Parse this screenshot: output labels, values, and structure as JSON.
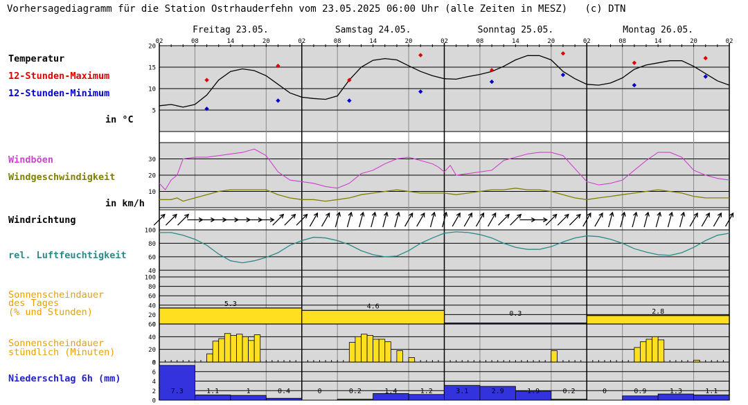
{
  "title": "Vorhersagediagramm für die Station Ostrhauderfehn vom 23.05.2025 06:00 Uhr (alle Zeiten in MESZ)   (c) DTN",
  "days": [
    "Freitag 23.05.",
    "Samstag 24.05.",
    "Sonntag 25.05.",
    "Montag 26.05."
  ],
  "hour_ticks": [
    "02",
    "08",
    "14",
    "20",
    "02",
    "08",
    "14",
    "20",
    "02",
    "08",
    "14",
    "20",
    "02",
    "08",
    "14",
    "20",
    "02"
  ],
  "labels": {
    "temperatur": "Temperatur",
    "tmax": "12-Stunden-Maximum",
    "tmin": "12-Stunden-Minimum",
    "tunit": "in °C",
    "gust": "Windböen",
    "wspeed": "Windgeschwindigkeit",
    "wunit": "in km/h",
    "wdir": "Windrichtung",
    "rh": "rel. Luftfeuchtigkeit",
    "sun_day_1": "Sonnenscheindauer",
    "sun_day_2": "des Tages",
    "sun_day_3": "(% und Stunden)",
    "sun_hour_1": "Sonnenscheindauer",
    "sun_hour_2": "stündlich (Minuten)",
    "precip": "Niederschlag 6h (mm)"
  },
  "colors": {
    "panel_bg": "#d8d8d8",
    "temp_line": "#000000",
    "tmax": "#e00000",
    "tmin": "#0000cc",
    "gust": "#cc44cc",
    "wspeed": "#808000",
    "rh": "#2a8a8a",
    "sun": "#ffe020",
    "precip": "#3333dd",
    "sun_label": "#e8a000",
    "precip_label": "#2222cc"
  },
  "chart_data": {
    "type": "meteogram",
    "x_hours_range": [
      0,
      96
    ],
    "temperature": {
      "ylim": [
        0,
        20
      ],
      "yticks": [
        "5",
        "10",
        "15",
        "20"
      ],
      "hourly_points": [
        [
          0,
          6
        ],
        [
          2,
          6.3
        ],
        [
          4,
          5.7
        ],
        [
          6,
          6.3
        ],
        [
          8,
          8.5
        ],
        [
          10,
          12
        ],
        [
          12,
          14
        ],
        [
          14,
          14.6
        ],
        [
          16,
          14.2
        ],
        [
          18,
          13
        ],
        [
          20,
          11
        ],
        [
          22,
          9
        ],
        [
          24,
          8
        ],
        [
          26,
          7.7
        ],
        [
          28,
          7.5
        ],
        [
          30,
          8.3
        ],
        [
          32,
          12
        ],
        [
          34,
          15
        ],
        [
          36,
          16.6
        ],
        [
          38,
          17
        ],
        [
          40,
          16.7
        ],
        [
          42,
          15.3
        ],
        [
          44,
          14
        ],
        [
          46,
          13
        ],
        [
          48,
          12.3
        ],
        [
          50,
          12.2
        ],
        [
          52,
          12.8
        ],
        [
          54,
          13.3
        ],
        [
          56,
          14
        ],
        [
          58,
          15.2
        ],
        [
          60,
          16.7
        ],
        [
          62,
          17.7
        ],
        [
          64,
          17.7
        ],
        [
          66,
          16.7
        ],
        [
          68,
          14
        ],
        [
          70,
          12.3
        ],
        [
          72,
          11
        ],
        [
          74,
          10.8
        ],
        [
          76,
          11.3
        ],
        [
          78,
          12.5
        ],
        [
          80,
          14.5
        ],
        [
          82,
          15.5
        ],
        [
          84,
          16
        ],
        [
          86,
          16.5
        ],
        [
          88,
          16.5
        ],
        [
          90,
          15.2
        ],
        [
          92,
          13.5
        ],
        [
          94,
          11.8
        ],
        [
          96,
          10.8
        ]
      ],
      "max_12h": [
        [
          8,
          12
        ],
        [
          20,
          15.3
        ],
        [
          32,
          12
        ],
        [
          44,
          17.8
        ],
        [
          56,
          14.3
        ],
        [
          68,
          18.2
        ],
        [
          80,
          16
        ],
        [
          92,
          17.1
        ]
      ],
      "min_12h": [
        [
          8,
          5.3
        ],
        [
          20,
          7.2
        ],
        [
          32,
          7.2
        ],
        [
          44,
          9.3
        ],
        [
          56,
          11.6
        ],
        [
          68,
          13.2
        ],
        [
          80,
          10.8
        ],
        [
          92,
          12.8
        ]
      ]
    },
    "wind": {
      "ylim": [
        0,
        40
      ],
      "yticks": [
        "10",
        "20",
        "30"
      ],
      "gust_points": [
        [
          0,
          15
        ],
        [
          1,
          11
        ],
        [
          2,
          17
        ],
        [
          3,
          20
        ],
        [
          4,
          30
        ],
        [
          6,
          31
        ],
        [
          8,
          31
        ],
        [
          10,
          32
        ],
        [
          12,
          33
        ],
        [
          14,
          34
        ],
        [
          16,
          36
        ],
        [
          18,
          32
        ],
        [
          20,
          22
        ],
        [
          22,
          17
        ],
        [
          24,
          16
        ],
        [
          26,
          15
        ],
        [
          28,
          13
        ],
        [
          30,
          12
        ],
        [
          32,
          15
        ],
        [
          34,
          21
        ],
        [
          36,
          23
        ],
        [
          38,
          27
        ],
        [
          40,
          30
        ],
        [
          42,
          31
        ],
        [
          44,
          29
        ],
        [
          46,
          27
        ],
        [
          47,
          25
        ],
        [
          48,
          22
        ],
        [
          49,
          26
        ],
        [
          50,
          20
        ],
        [
          52,
          21
        ],
        [
          54,
          22
        ],
        [
          56,
          23
        ],
        [
          58,
          29
        ],
        [
          60,
          31
        ],
        [
          62,
          33
        ],
        [
          64,
          34
        ],
        [
          66,
          34
        ],
        [
          68,
          32
        ],
        [
          70,
          24
        ],
        [
          72,
          16
        ],
        [
          74,
          14
        ],
        [
          76,
          15
        ],
        [
          78,
          17
        ],
        [
          80,
          23
        ],
        [
          82,
          29
        ],
        [
          84,
          34
        ],
        [
          86,
          34
        ],
        [
          88,
          31
        ],
        [
          90,
          23
        ],
        [
          92,
          20
        ],
        [
          94,
          18
        ],
        [
          96,
          17
        ]
      ],
      "speed_points": [
        [
          0,
          5
        ],
        [
          2,
          5
        ],
        [
          3,
          6
        ],
        [
          4,
          4
        ],
        [
          6,
          6
        ],
        [
          8,
          8
        ],
        [
          10,
          10
        ],
        [
          12,
          11
        ],
        [
          14,
          11
        ],
        [
          16,
          11
        ],
        [
          18,
          11
        ],
        [
          20,
          8
        ],
        [
          22,
          6
        ],
        [
          24,
          5
        ],
        [
          26,
          5
        ],
        [
          28,
          4
        ],
        [
          30,
          5
        ],
        [
          32,
          6
        ],
        [
          34,
          8
        ],
        [
          36,
          9
        ],
        [
          38,
          10
        ],
        [
          40,
          11
        ],
        [
          42,
          10
        ],
        [
          44,
          9
        ],
        [
          46,
          9
        ],
        [
          48,
          9
        ],
        [
          50,
          8
        ],
        [
          52,
          9
        ],
        [
          54,
          10
        ],
        [
          56,
          11
        ],
        [
          58,
          11
        ],
        [
          60,
          12
        ],
        [
          62,
          11
        ],
        [
          64,
          11
        ],
        [
          66,
          10
        ],
        [
          68,
          8
        ],
        [
          70,
          6
        ],
        [
          72,
          5
        ],
        [
          74,
          6
        ],
        [
          76,
          7
        ],
        [
          78,
          8
        ],
        [
          80,
          9
        ],
        [
          82,
          10
        ],
        [
          84,
          11
        ],
        [
          86,
          10
        ],
        [
          88,
          9
        ],
        [
          90,
          7
        ],
        [
          92,
          6
        ],
        [
          94,
          6
        ],
        [
          96,
          6
        ]
      ]
    },
    "wind_direction_deg": [
      45,
      45,
      45,
      90,
      90,
      90,
      90,
      90,
      90,
      90,
      45,
      45,
      45,
      30,
      30,
      15,
      15,
      15,
      15,
      15,
      15,
      30,
      30,
      15,
      15,
      30,
      30,
      30,
      30,
      45,
      45,
      90,
      90,
      45,
      45,
      45,
      30,
      30,
      15,
      15,
      15,
      15,
      15,
      15,
      15,
      30,
      30,
      30,
      30
    ],
    "humidity": {
      "ylim": [
        30,
        100
      ],
      "yticks": [
        "40",
        "60",
        "80",
        "100"
      ],
      "points": [
        [
          0,
          96
        ],
        [
          2,
          96
        ],
        [
          4,
          92
        ],
        [
          6,
          86
        ],
        [
          8,
          77
        ],
        [
          10,
          64
        ],
        [
          12,
          54
        ],
        [
          14,
          51
        ],
        [
          16,
          54
        ],
        [
          18,
          59
        ],
        [
          20,
          66
        ],
        [
          22,
          77
        ],
        [
          24,
          84
        ],
        [
          26,
          89
        ],
        [
          28,
          88
        ],
        [
          30,
          84
        ],
        [
          32,
          78
        ],
        [
          34,
          69
        ],
        [
          36,
          63
        ],
        [
          38,
          60
        ],
        [
          40,
          61
        ],
        [
          42,
          69
        ],
        [
          44,
          80
        ],
        [
          46,
          88
        ],
        [
          48,
          95
        ],
        [
          50,
          97
        ],
        [
          52,
          96
        ],
        [
          54,
          93
        ],
        [
          56,
          88
        ],
        [
          58,
          80
        ],
        [
          60,
          74
        ],
        [
          62,
          71
        ],
        [
          64,
          71
        ],
        [
          66,
          75
        ],
        [
          68,
          82
        ],
        [
          70,
          88
        ],
        [
          72,
          91
        ],
        [
          74,
          90
        ],
        [
          76,
          86
        ],
        [
          78,
          80
        ],
        [
          80,
          72
        ],
        [
          82,
          67
        ],
        [
          84,
          63
        ],
        [
          86,
          62
        ],
        [
          88,
          66
        ],
        [
          90,
          74
        ],
        [
          92,
          84
        ],
        [
          94,
          92
        ],
        [
          96,
          95
        ]
      ]
    },
    "sun_daily": {
      "ylim": [
        0,
        100
      ],
      "yticks": [
        "0",
        "20",
        "40",
        "60",
        "80",
        "100"
      ],
      "days": [
        {
          "percent": 34,
          "hours": "5.3"
        },
        {
          "percent": 29,
          "hours": "4.6"
        },
        {
          "percent": 2,
          "hours": "0.3"
        },
        {
          "percent": 18,
          "hours": "2.8"
        }
      ]
    },
    "sun_hourly": {
      "ylim": [
        0,
        60
      ],
      "yticks": [
        "0",
        "20",
        "40",
        "60"
      ],
      "values": [
        0,
        0,
        0,
        0,
        0,
        0,
        0,
        0,
        0,
        0,
        0,
        0,
        0,
        0,
        0,
        0,
        13,
        33,
        37,
        45,
        42,
        44,
        40,
        34,
        43,
        0,
        0,
        0,
        0,
        0,
        0,
        0,
        0,
        0,
        0,
        0,
        0,
        0,
        0,
        0,
        0,
        0,
        0,
        0,
        0,
        0,
        0,
        0,
        0,
        0,
        0,
        0,
        0,
        0,
        0,
        0,
        0,
        0,
        0,
        0,
        0,
        0,
        0,
        0,
        0,
        0,
        0,
        0,
        0,
        0,
        0,
        0,
        0,
        0,
        0,
        0,
        0,
        0,
        0,
        0,
        0,
        0,
        0,
        0,
        0,
        0,
        0,
        0,
        0,
        0,
        0,
        0,
        0,
        0,
        0,
        0
      ]
    },
    "sun_hourly_sparse": [
      [
        8,
        13
      ],
      [
        9,
        33
      ],
      [
        10,
        37
      ],
      [
        11,
        45
      ],
      [
        12,
        42
      ],
      [
        13,
        44
      ],
      [
        14,
        40
      ],
      [
        15,
        34
      ],
      [
        16,
        43
      ],
      [
        32,
        31
      ],
      [
        33,
        40
      ],
      [
        34,
        44
      ],
      [
        35,
        42
      ],
      [
        36,
        36
      ],
      [
        37,
        36
      ],
      [
        38,
        32
      ],
      [
        40,
        18
      ],
      [
        42,
        7
      ],
      [
        66,
        18
      ],
      [
        80,
        23
      ],
      [
        81,
        32
      ],
      [
        82,
        36
      ],
      [
        83,
        40
      ],
      [
        84,
        35
      ],
      [
        90,
        3
      ]
    ],
    "precip_6h": {
      "ylim": [
        0,
        8
      ],
      "yticks": [
        "0",
        "2",
        "4",
        "6",
        "8"
      ],
      "values": [
        7.3,
        1.1,
        1,
        0.4,
        0,
        0.2,
        1.4,
        1.2,
        3.1,
        2.9,
        1.9,
        0.2,
        0,
        0.9,
        1.3,
        1.1
      ],
      "labels": [
        "7.3",
        "1.1",
        "1",
        "0.4",
        "0",
        "0.2",
        "1.4",
        "1.2",
        "3.1",
        "2.9",
        "1.9",
        "0.2",
        "0",
        "0.9",
        "1.3",
        "1.1"
      ]
    }
  }
}
